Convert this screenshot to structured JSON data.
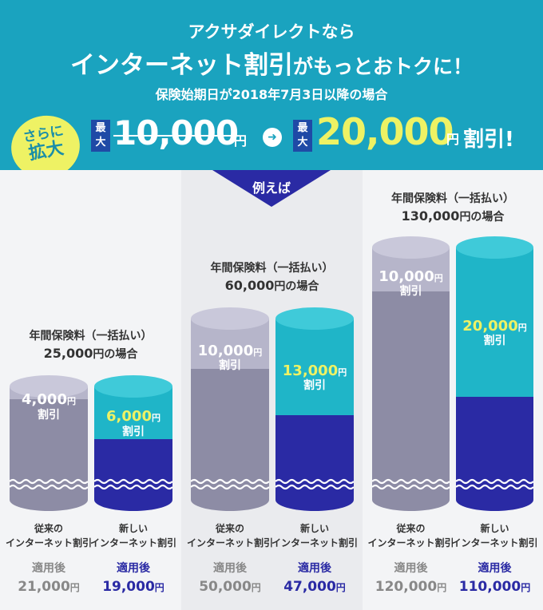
{
  "header": {
    "line1": "アクサダイレクトなら",
    "line2_big": "インターネット割引",
    "line2_small": "がもっとおトクに！",
    "line3": "保険始期日が2018年7月3日以降の場合",
    "badge_line1": "さらに",
    "badge_line2": "拡大",
    "max_tag": "最大",
    "old_discount": "10,000",
    "new_discount": "20,000",
    "yen": "円",
    "waribiki": "割引!",
    "arrow": "➜"
  },
  "example_label": "例えば",
  "colors": {
    "banner": "#1aa3bf",
    "accent_yellow": "#eef264",
    "navy": "#2a2aa4",
    "old_gray": "#8d8ca5"
  },
  "examples": [
    {
      "premium_label": "年間保険料（一括払い）",
      "premium_amount": "25,000",
      "premium_suffix": "円の場合",
      "old": {
        "discount": "4,000",
        "yen": "円",
        "label": "割引",
        "caption1": "従来の",
        "caption2": "インターネット割引",
        "after": "適用後",
        "amount": "21,000",
        "amount_yen": "円"
      },
      "new": {
        "discount": "6,000",
        "yen": "円",
        "label": "割引",
        "caption1": "新しい",
        "caption2": "インターネット割引",
        "after": "適用後",
        "amount": "19,000",
        "amount_yen": "円"
      }
    },
    {
      "premium_label": "年間保険料（一括払い）",
      "premium_amount": "60,000",
      "premium_suffix": "円の場合",
      "old": {
        "discount": "10,000",
        "yen": "円",
        "label": "割引",
        "caption1": "従来の",
        "caption2": "インターネット割引",
        "after": "適用後",
        "amount": "50,000",
        "amount_yen": "円"
      },
      "new": {
        "discount": "13,000",
        "yen": "円",
        "label": "割引",
        "caption1": "新しい",
        "caption2": "インターネット割引",
        "after": "適用後",
        "amount": "47,000",
        "amount_yen": "円"
      }
    },
    {
      "premium_label": "年間保険料（一括払い）",
      "premium_amount": "130,000",
      "premium_suffix": "円の場合",
      "old": {
        "discount": "10,000",
        "yen": "円",
        "label": "割引",
        "caption1": "従来の",
        "caption2": "インターネット割引",
        "after": "適用後",
        "amount": "120,000",
        "amount_yen": "円"
      },
      "new": {
        "discount": "20,000",
        "yen": "円",
        "label": "割引",
        "caption1": "新しい",
        "caption2": "インターネット割引",
        "after": "適用後",
        "amount": "110,000",
        "amount_yen": "円"
      }
    }
  ]
}
